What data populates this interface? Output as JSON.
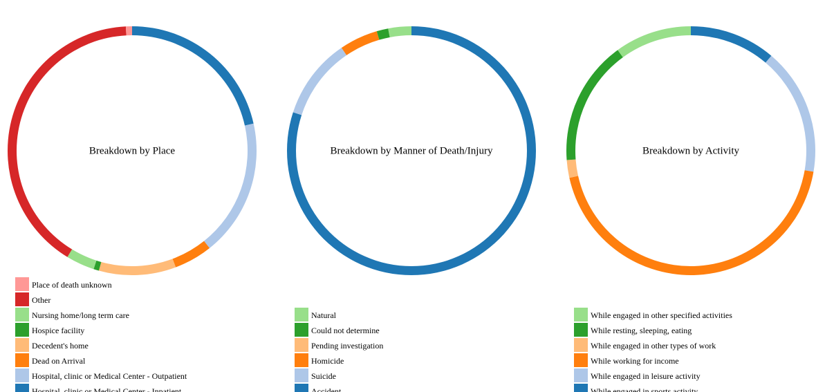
{
  "chart_data": [
    {
      "type": "pie",
      "title": "Breakdown by Place",
      "slices": [
        {
          "label": "Hospital, clinic or Medical Center - Inpatient",
          "value": 21.5,
          "color": "#1f77b4"
        },
        {
          "label": "Hospital, clinic or Medical Center - Outpatient",
          "value": 17.8,
          "color": "#aec7e8"
        },
        {
          "label": "Dead on Arrival",
          "value": 5.0,
          "color": "#ff7f0e"
        },
        {
          "label": "Decedent's home",
          "value": 10.0,
          "color": "#ffbb78"
        },
        {
          "label": "Hospice facility",
          "value": 0.7,
          "color": "#2ca02c"
        },
        {
          "label": "Nursing home/long term care",
          "value": 3.7,
          "color": "#98df8a"
        },
        {
          "label": "Other",
          "value": 40.5,
          "color": "#d62728"
        },
        {
          "label": "Place of death unknown",
          "value": 0.8,
          "color": "#ff9896"
        }
      ]
    },
    {
      "type": "pie",
      "title": "Breakdown by Manner of Death/Injury",
      "slices": [
        {
          "label": "Accident",
          "value": 80.0,
          "color": "#1f77b4"
        },
        {
          "label": "Suicide",
          "value": 10.5,
          "color": "#aec7e8"
        },
        {
          "label": "Homicide",
          "value": 5.0,
          "color": "#ff7f0e"
        },
        {
          "label": "Pending investigation",
          "value": 0.0,
          "color": "#ffbb78"
        },
        {
          "label": "Could not determine",
          "value": 1.5,
          "color": "#2ca02c"
        },
        {
          "label": "Natural",
          "value": 3.0,
          "color": "#98df8a"
        }
      ]
    },
    {
      "type": "pie",
      "title": "Breakdown by Activity",
      "slices": [
        {
          "label": "While engaged in sports activity",
          "value": 11.2,
          "color": "#1f77b4"
        },
        {
          "label": "While engaged in leisure activity",
          "value": 16.5,
          "color": "#aec7e8"
        },
        {
          "label": "While working for income",
          "value": 43.8,
          "color": "#ff7f0e"
        },
        {
          "label": "While engaged in other types of work",
          "value": 2.3,
          "color": "#ffbb78"
        },
        {
          "label": "While resting, sleeping, eating",
          "value": 16.2,
          "color": "#2ca02c"
        },
        {
          "label": "While engaged in other specified activities",
          "value": 10.0,
          "color": "#98df8a"
        }
      ]
    }
  ]
}
